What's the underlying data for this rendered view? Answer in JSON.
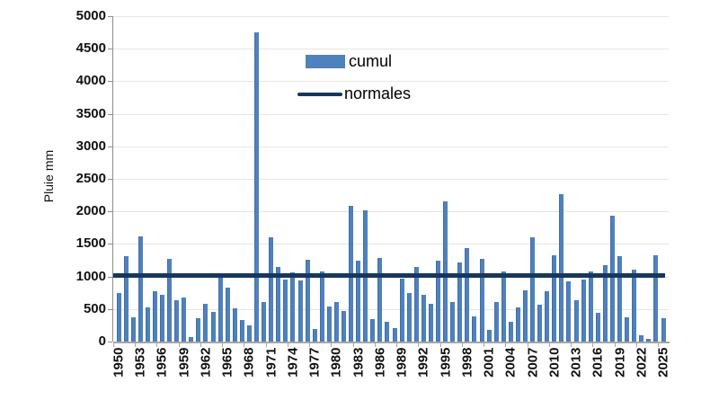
{
  "figure": {
    "background": "#ffffff",
    "ylabel": "Pluie mm"
  },
  "chart_data": {
    "type": "bar",
    "title": "",
    "xlabel": "",
    "ylabel": "Pluie mm",
    "ylim": [
      0,
      5000
    ],
    "y_tick_step": 500,
    "y_ticks": [
      0,
      500,
      1000,
      1500,
      2000,
      2500,
      3000,
      3500,
      4000,
      4500,
      5000
    ],
    "grid": true,
    "gridline_color": "#e7e5df",
    "legend_position": "upper-center",
    "categories": [
      1950,
      1951,
      1952,
      1953,
      1954,
      1955,
      1956,
      1957,
      1958,
      1959,
      1960,
      1961,
      1962,
      1963,
      1964,
      1965,
      1966,
      1967,
      1968,
      1969,
      1970,
      1971,
      1972,
      1973,
      1974,
      1975,
      1976,
      1977,
      1978,
      1979,
      1980,
      1981,
      1982,
      1983,
      1984,
      1985,
      1986,
      1987,
      1988,
      1989,
      1990,
      1991,
      1992,
      1993,
      1994,
      1995,
      1996,
      1997,
      1998,
      1999,
      2000,
      2001,
      2002,
      2003,
      2004,
      2005,
      2006,
      2007,
      2008,
      2009,
      2010,
      2011,
      2012,
      2013,
      2014,
      2015,
      2016,
      2017,
      2018,
      2019,
      2020,
      2021,
      2022,
      2023,
      2024,
      2025
    ],
    "x_tick_labels": [
      "1950",
      "1953",
      "1956",
      "1959",
      "1962",
      "1965",
      "1968",
      "1971",
      "1974",
      "1977",
      "1980",
      "1983",
      "1986",
      "1989",
      "1992",
      "1995",
      "1998",
      "2001",
      "2004",
      "2007",
      "2010",
      "2013",
      "2016",
      "2019",
      "2022",
      "2025"
    ],
    "series": [
      {
        "name": "cumul",
        "type": "bar",
        "color": "#4f81bd",
        "values": [
          740,
          1310,
          380,
          1620,
          530,
          780,
          720,
          1270,
          630,
          680,
          70,
          360,
          580,
          460,
          1010,
          830,
          510,
          330,
          250,
          4750,
          610,
          1600,
          1140,
          950,
          1060,
          940,
          1260,
          200,
          1080,
          540,
          610,
          470,
          2080,
          1250,
          2010,
          340,
          1280,
          310,
          210,
          970,
          740,
          1150,
          720,
          580,
          1250,
          2160,
          610,
          1220,
          1440,
          390,
          1270,
          180,
          610,
          1080,
          300,
          530,
          790,
          1600,
          570,
          780,
          1320,
          2260,
          930,
          640,
          960,
          1080,
          440,
          1180,
          1940,
          1310,
          370,
          1100,
          100,
          45,
          1320,
          360
        ]
      },
      {
        "name": "normales",
        "type": "line",
        "color": "#17375e",
        "constant_value": 1020
      }
    ]
  }
}
